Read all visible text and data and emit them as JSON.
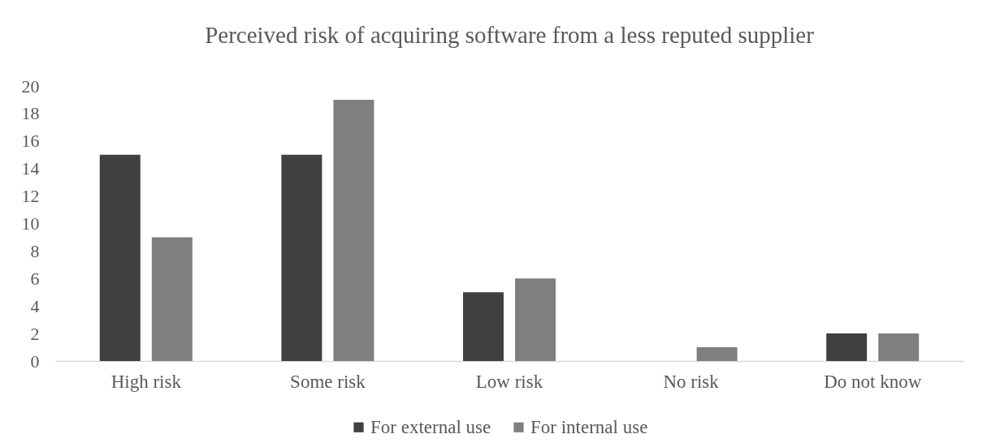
{
  "chart_data": {
    "type": "bar",
    "title": "Perceived risk of acquiring software from a less reputed supplier",
    "categories": [
      "High risk",
      "Some risk",
      "Low risk",
      "No risk",
      "Do not know"
    ],
    "series": [
      {
        "name": "For external use",
        "color": "#404040",
        "values": [
          15,
          15,
          5,
          0,
          2
        ]
      },
      {
        "name": "For internal use",
        "color": "#7f7f7f",
        "values": [
          9,
          19,
          6,
          1,
          2
        ]
      }
    ],
    "ylim": [
      0,
      20
    ],
    "yticks": [
      0,
      2,
      4,
      6,
      8,
      10,
      12,
      14,
      16,
      18,
      20
    ],
    "grid": false,
    "legend": "bottom"
  }
}
